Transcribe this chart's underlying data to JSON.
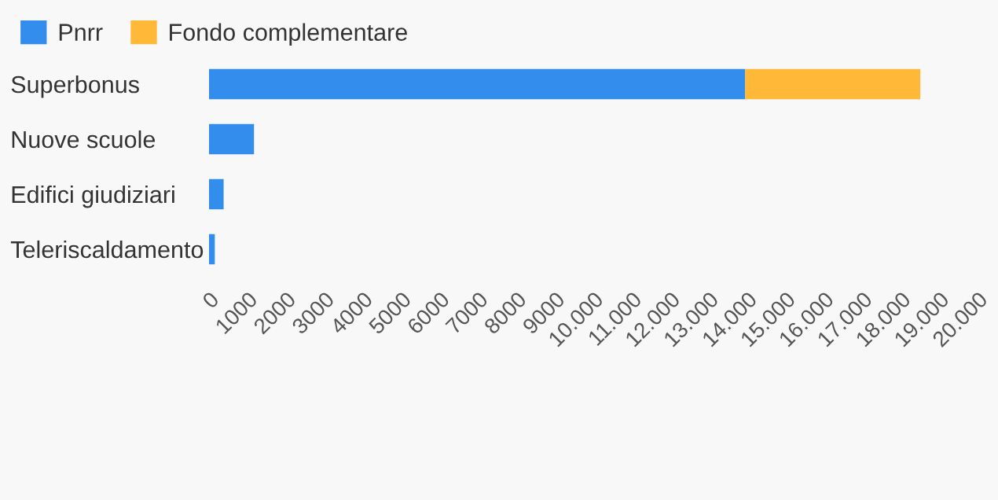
{
  "chart_data": {
    "type": "bar",
    "orientation": "horizontal",
    "stacked": true,
    "categories": [
      "Superbonus",
      "Nuove scuole",
      "Edifici giudiziari",
      "Teleriscaldamento"
    ],
    "series": [
      {
        "name": "Pnrr",
        "color": "#338ded",
        "values": [
          13950,
          1170,
          380,
          150
        ]
      },
      {
        "name": "Fondo complementare",
        "color": "#ffb838",
        "values": [
          4560,
          0,
          0,
          0
        ]
      }
    ],
    "xlim": [
      0,
      20000
    ],
    "xticks": [
      0,
      1000,
      2000,
      3000,
      4000,
      5000,
      6000,
      7000,
      8000,
      9000,
      {
        "value": 10000,
        "label": "10.000"
      },
      {
        "value": 11000,
        "label": "11.000"
      },
      {
        "value": 12000,
        "label": "12.000"
      },
      {
        "value": 13000,
        "label": "13.000"
      },
      {
        "value": 14000,
        "label": "14.000"
      },
      {
        "value": 15000,
        "label": "15.000"
      },
      {
        "value": 16000,
        "label": "16.000"
      },
      {
        "value": 17000,
        "label": "17.000"
      },
      {
        "value": 18000,
        "label": "18.000"
      },
      {
        "value": 19000,
        "label": "19.000"
      },
      {
        "value": 20000,
        "label": "20.000"
      }
    ],
    "legend": "top left",
    "grid": false
  }
}
